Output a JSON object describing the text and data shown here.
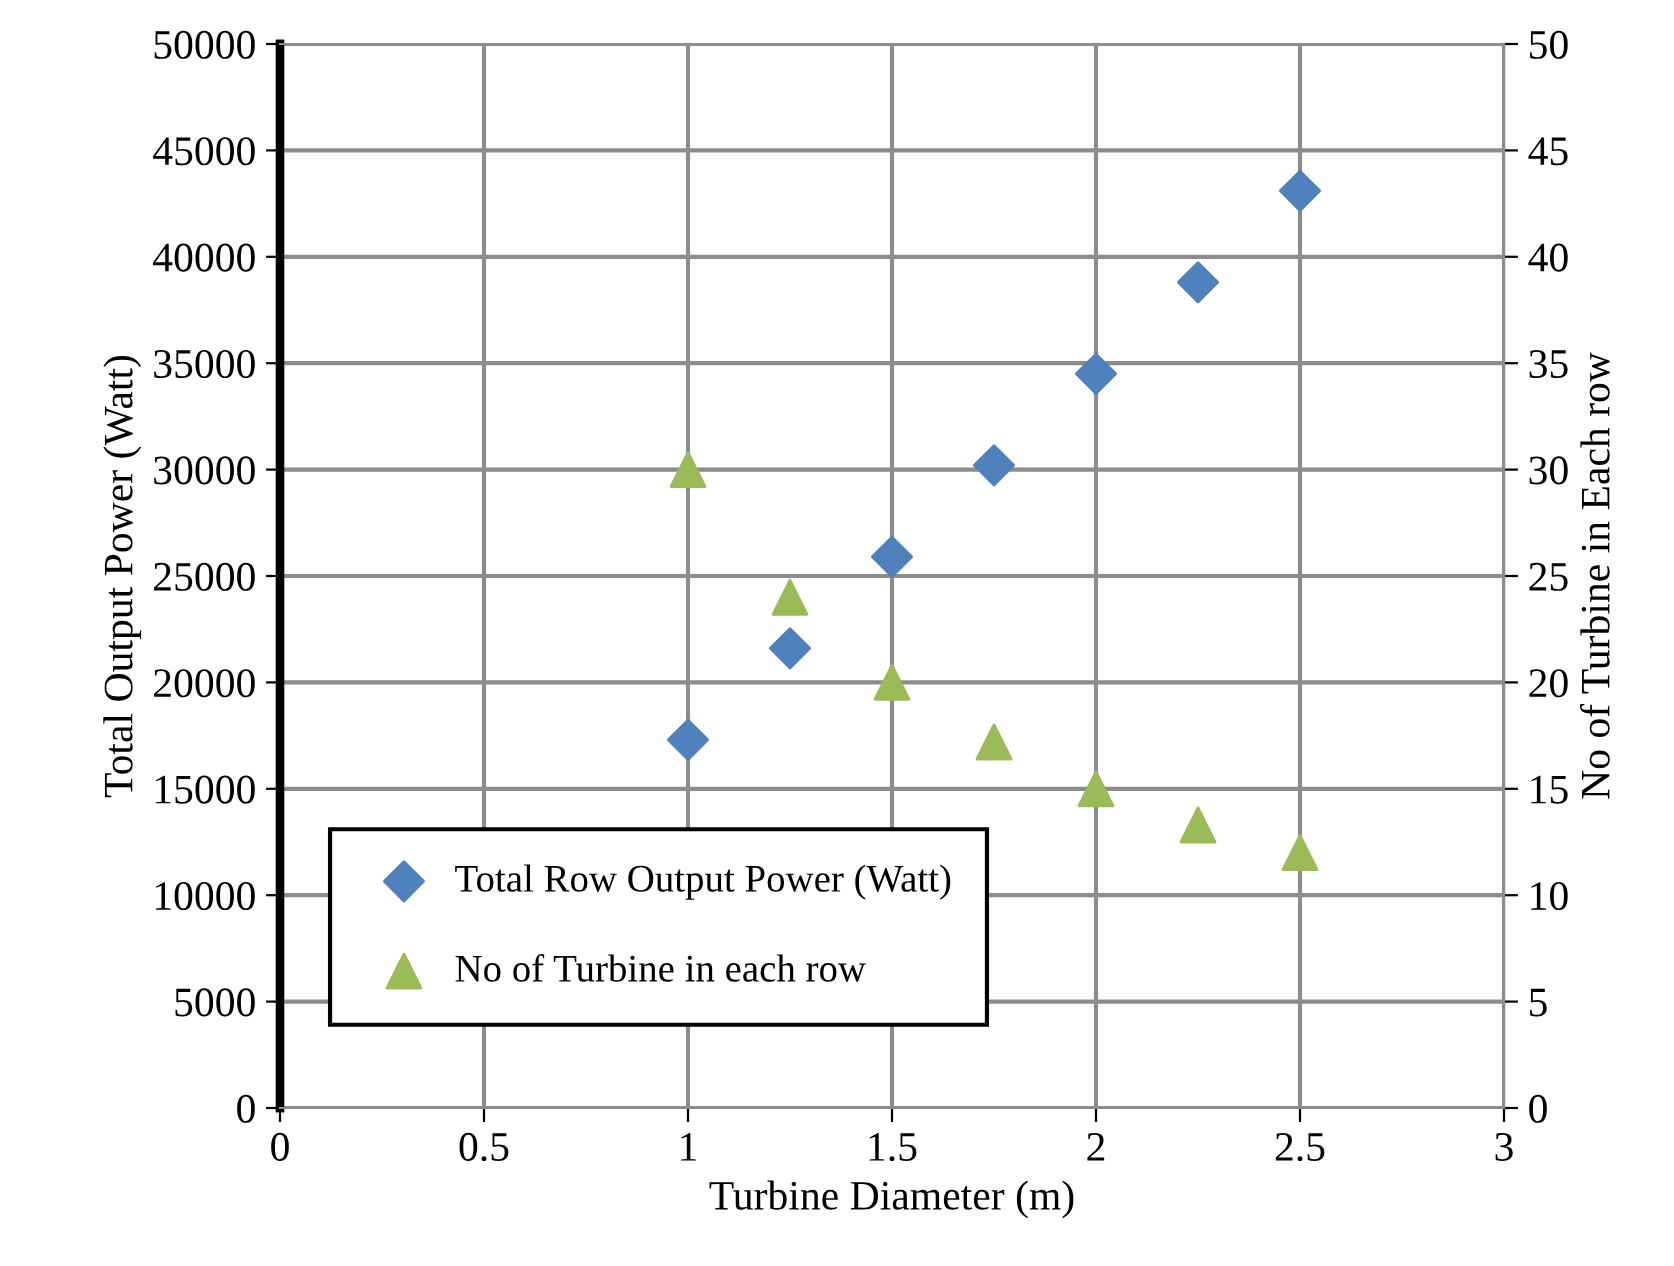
{
  "chart_data": {
    "type": "scatter",
    "xlabel": "Turbine Diameter (m)",
    "ylabel": "Total Output Power (Watt)",
    "y2label": "No of Turbine in Each row",
    "x": [
      1,
      1.25,
      1.5,
      1.75,
      2,
      2.25,
      2.5
    ],
    "series": [
      {
        "name": "Total Row Output Power (Watt)",
        "color": "#4f81bd",
        "marker": "diamond",
        "values": [
          17300,
          21600,
          25900,
          30200,
          34500,
          38800,
          43100
        ]
      },
      {
        "name": "No of Turbine in each row",
        "color": "#9bbb59",
        "marker": "triangle",
        "axis": "y2",
        "values": [
          30,
          24,
          20,
          17.2,
          15,
          13.3,
          12
        ]
      }
    ],
    "xlim": [
      0,
      3
    ],
    "xticks": [
      0,
      0.5,
      1,
      1.5,
      2,
      2.5,
      3
    ],
    "ylim": [
      0,
      50000
    ],
    "yticks": [
      0,
      5000,
      10000,
      15000,
      20000,
      25000,
      30000,
      35000,
      40000,
      45000,
      50000
    ],
    "y2lim": [
      0,
      50
    ],
    "y2ticks": [
      0,
      5,
      10,
      15,
      20,
      25,
      30,
      35,
      40,
      45,
      50
    ],
    "grid": true,
    "legend": "bottom left"
  }
}
